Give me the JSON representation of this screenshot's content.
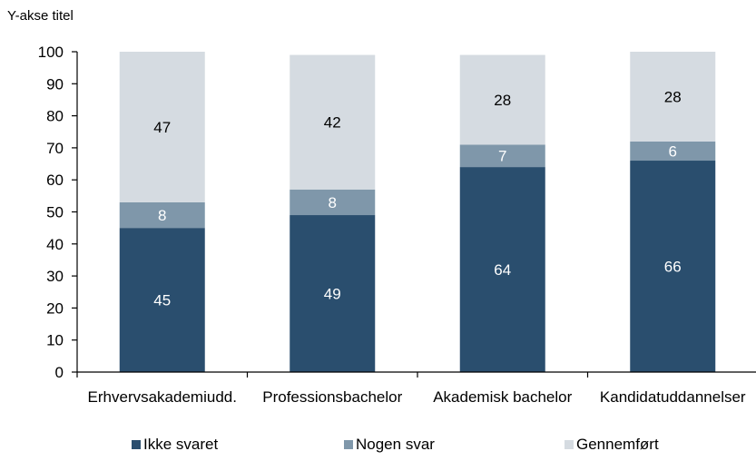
{
  "chart_data": {
    "type": "bar",
    "stacked": true,
    "ylabel": "Y-akse titel",
    "ylim": [
      0,
      100
    ],
    "yticks": [
      "0",
      "10",
      "20",
      "30",
      "40",
      "50",
      "60",
      "70",
      "80",
      "90",
      "100"
    ],
    "categories": [
      "Erhvervsakademiudd.",
      "Professionsbachelor",
      "Akademisk bachelor",
      "Kandidatuddannelser"
    ],
    "series": [
      {
        "name": "Ikke svaret",
        "values": [
          45,
          49,
          64,
          66
        ],
        "color": "#2a4e6e",
        "label_color": "#ffffff"
      },
      {
        "name": "Nogen svar",
        "values": [
          8,
          8,
          7,
          6
        ],
        "color": "#7f97aa",
        "label_color": "#ffffff"
      },
      {
        "name": "Gennemført",
        "values": [
          47,
          42,
          28,
          28
        ],
        "color": "#d5dbe1",
        "label_color": "#000000"
      }
    ],
    "legend_position": "bottom",
    "grid": false
  }
}
